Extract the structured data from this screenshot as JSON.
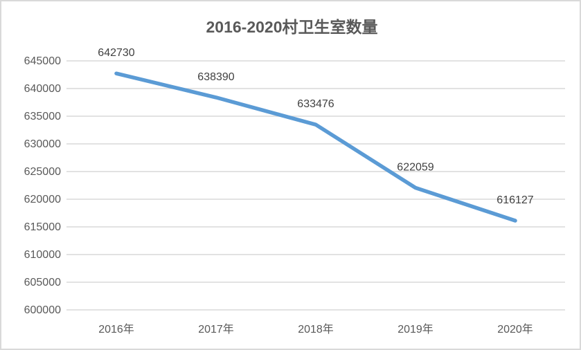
{
  "chart_data": {
    "type": "line",
    "title": "2016-2020村卫生室数量",
    "categories": [
      "2016年",
      "2017年",
      "2018年",
      "2019年",
      "2020年"
    ],
    "series": [
      {
        "name": "村卫生室数量",
        "values": [
          642730,
          638390,
          633476,
          622059,
          616127
        ]
      }
    ],
    "data_labels": [
      "642730",
      "638390",
      "633476",
      "622059",
      "616127"
    ],
    "y_tick_labels": [
      "645000",
      "640000",
      "635000",
      "630000",
      "625000",
      "620000",
      "615000",
      "610000",
      "605000",
      "600000"
    ],
    "ylim": [
      600000,
      645000
    ],
    "ytick_step": 5000,
    "xlabel": "",
    "ylabel": "",
    "grid": true,
    "legend_position": "none",
    "colors": {
      "line": "#5B9BD5",
      "gridline": "#D9D9D9",
      "title": "#595959",
      "axis_label": "#595959",
      "data_label": "#404040",
      "border": "#D9D9D9",
      "background": "#FFFFFF"
    }
  }
}
